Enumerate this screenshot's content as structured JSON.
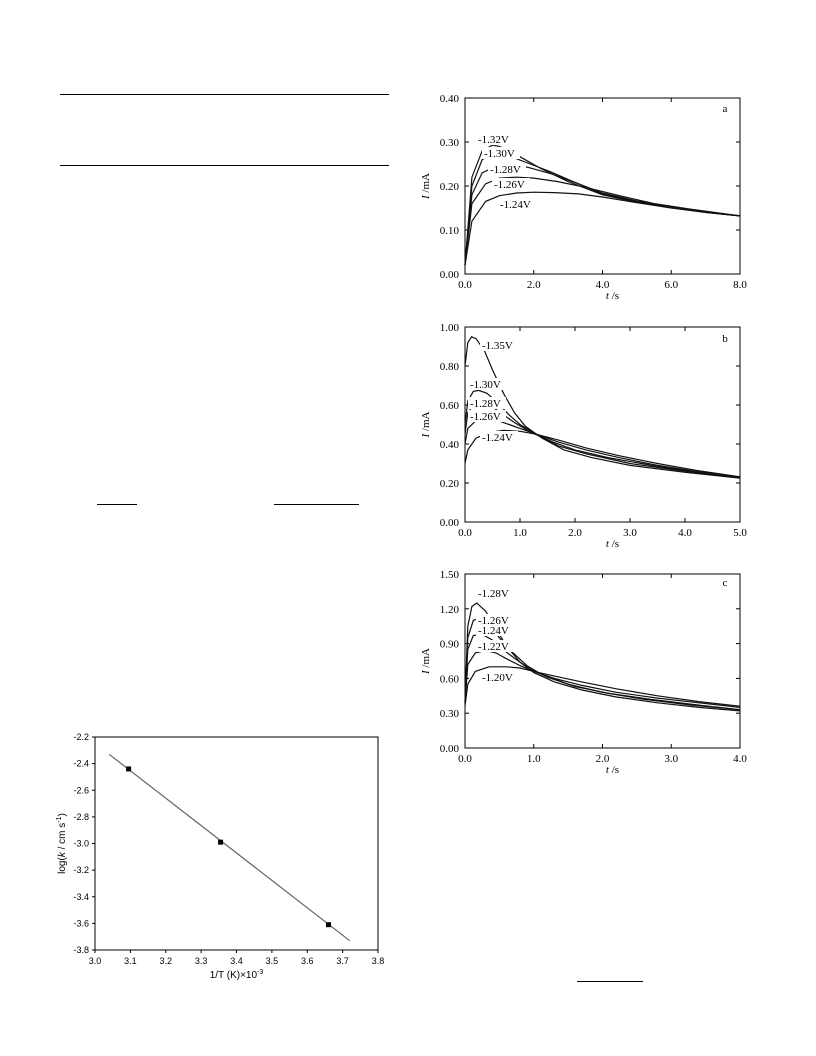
{
  "chart_data": [
    {
      "type": "line",
      "panel_letter": "a",
      "xlabel_var": "t",
      "xlabel_unit": " /s",
      "ylabel_var": "I",
      "ylabel_unit": " /mA",
      "xlim": [
        0,
        8
      ],
      "ylim": [
        0,
        0.4
      ],
      "x_ticks": [
        0,
        2,
        4,
        6,
        8
      ],
      "x_tick_labels": [
        "0.0",
        "2.0",
        "4.0",
        "6.0",
        "8.0"
      ],
      "y_ticks": [
        0,
        0.1,
        0.2,
        0.3,
        0.4
      ],
      "y_tick_labels": [
        "0.00",
        "0.10",
        "0.20",
        "0.30",
        "0.40"
      ],
      "series": [
        {
          "name": "-1.32V",
          "x": [
            0,
            0.2,
            0.5,
            0.8,
            1.0,
            1.3,
            1.7,
            2.2,
            3,
            4,
            5,
            6,
            7,
            8
          ],
          "y": [
            0.02,
            0.22,
            0.28,
            0.293,
            0.29,
            0.28,
            0.262,
            0.24,
            0.21,
            0.18,
            0.163,
            0.151,
            0.14,
            0.132
          ]
        },
        {
          "name": "-1.30V",
          "x": [
            0,
            0.2,
            0.5,
            0.8,
            1.1,
            1.4,
            1.9,
            2.5,
            3,
            4,
            5,
            6,
            7,
            8
          ],
          "y": [
            0.02,
            0.2,
            0.26,
            0.273,
            0.272,
            0.265,
            0.25,
            0.232,
            0.215,
            0.182,
            0.165,
            0.152,
            0.14,
            0.132
          ]
        },
        {
          "name": "-1.28V",
          "x": [
            0,
            0.2,
            0.5,
            0.9,
            1.3,
            1.8,
            2.5,
            3.2,
            4,
            5,
            6,
            7,
            8
          ],
          "y": [
            0.02,
            0.18,
            0.23,
            0.245,
            0.248,
            0.243,
            0.228,
            0.208,
            0.184,
            0.166,
            0.152,
            0.141,
            0.132
          ]
        },
        {
          "name": "-1.26V",
          "x": [
            0,
            0.2,
            0.6,
            1.0,
            1.5,
            2.0,
            2.7,
            3.5,
            4.5,
            5.5,
            6.5,
            8
          ],
          "y": [
            0.02,
            0.16,
            0.205,
            0.218,
            0.22,
            0.218,
            0.21,
            0.197,
            0.178,
            0.16,
            0.148,
            0.132
          ]
        },
        {
          "name": "-1.24V",
          "x": [
            0,
            0.2,
            0.6,
            1.0,
            1.5,
            2.0,
            2.6,
            3.3,
            4,
            5,
            6,
            7,
            8
          ],
          "y": [
            0.02,
            0.12,
            0.165,
            0.178,
            0.184,
            0.186,
            0.185,
            0.182,
            0.175,
            0.162,
            0.15,
            0.14,
            0.132
          ]
        }
      ],
      "label_positions_note": ""
    },
    {
      "type": "line",
      "panel_letter": "b",
      "xlabel_var": "t",
      "xlabel_unit": " /s",
      "ylabel_var": "I",
      "ylabel_unit": " /mA",
      "xlim": [
        0,
        5
      ],
      "ylim": [
        0,
        1.0
      ],
      "x_ticks": [
        0,
        1,
        2,
        3,
        4,
        5
      ],
      "x_tick_labels": [
        "0.0",
        "1.0",
        "2.0",
        "3.0",
        "4.0",
        "5.0"
      ],
      "y_ticks": [
        0,
        0.2,
        0.4,
        0.6,
        0.8,
        1.0
      ],
      "y_tick_labels": [
        "0.00",
        "0.20",
        "0.40",
        "0.60",
        "0.80",
        "1.00"
      ],
      "series": [
        {
          "name": "-1.35V",
          "x": [
            0,
            0.05,
            0.12,
            0.2,
            0.35,
            0.5,
            0.7,
            0.9,
            1.1,
            1.4,
            1.8,
            2.3,
            3,
            4,
            5
          ],
          "y": [
            0.8,
            0.92,
            0.95,
            0.94,
            0.88,
            0.78,
            0.66,
            0.56,
            0.49,
            0.43,
            0.37,
            0.33,
            0.29,
            0.255,
            0.225
          ]
        },
        {
          "name": "-1.30V",
          "x": [
            0,
            0.05,
            0.15,
            0.25,
            0.4,
            0.6,
            0.8,
            1.0,
            1.3,
            1.7,
            2.2,
            3,
            4,
            5
          ],
          "y": [
            0.5,
            0.62,
            0.67,
            0.675,
            0.66,
            0.61,
            0.55,
            0.5,
            0.45,
            0.39,
            0.35,
            0.3,
            0.26,
            0.228
          ]
        },
        {
          "name": "-1.28V",
          "x": [
            0,
            0.05,
            0.15,
            0.3,
            0.5,
            0.7,
            0.9,
            1.2,
            1.6,
            2.0,
            2.6,
            3.4,
            4.2,
            5
          ],
          "y": [
            0.45,
            0.56,
            0.6,
            0.61,
            0.59,
            0.55,
            0.51,
            0.46,
            0.41,
            0.37,
            0.33,
            0.29,
            0.255,
            0.228
          ]
        },
        {
          "name": "-1.26V",
          "x": [
            0,
            0.05,
            0.2,
            0.4,
            0.6,
            0.8,
            1.0,
            1.3,
            1.7,
            2.2,
            2.8,
            3.5,
            4.2,
            5
          ],
          "y": [
            0.4,
            0.48,
            0.52,
            0.525,
            0.52,
            0.5,
            0.48,
            0.45,
            0.41,
            0.37,
            0.33,
            0.29,
            0.26,
            0.23
          ]
        },
        {
          "name": "-1.24V",
          "x": [
            0,
            0.05,
            0.2,
            0.45,
            0.7,
            1.0,
            1.3,
            1.7,
            2.2,
            2.8,
            3.5,
            4.2,
            5
          ],
          "y": [
            0.3,
            0.37,
            0.43,
            0.46,
            0.47,
            0.465,
            0.45,
            0.42,
            0.38,
            0.34,
            0.3,
            0.265,
            0.232
          ]
        }
      ]
    },
    {
      "type": "line",
      "panel_letter": "c",
      "xlabel_var": "t",
      "xlabel_unit": " /s",
      "ylabel_var": "I",
      "ylabel_unit": " /mA",
      "xlim": [
        0,
        4
      ],
      "ylim": [
        0,
        1.5
      ],
      "x_ticks": [
        0,
        1,
        2,
        3,
        4
      ],
      "x_tick_labels": [
        "0.0",
        "1.0",
        "2.0",
        "3.0",
        "4.0"
      ],
      "y_ticks": [
        0,
        0.3,
        0.6,
        0.9,
        1.2,
        1.5
      ],
      "y_tick_labels": [
        "0.00",
        "0.30",
        "0.60",
        "0.90",
        "1.20",
        "1.50"
      ],
      "series": [
        {
          "name": "-1.28V",
          "x": [
            0,
            0.04,
            0.1,
            0.17,
            0.3,
            0.45,
            0.6,
            0.8,
            1.0,
            1.3,
            1.7,
            2.2,
            2.8,
            3.4,
            4
          ],
          "y": [
            0.4,
            1.05,
            1.22,
            1.25,
            1.18,
            1.03,
            0.88,
            0.74,
            0.65,
            0.57,
            0.5,
            0.44,
            0.39,
            0.35,
            0.32
          ]
        },
        {
          "name": "-1.26V",
          "x": [
            0,
            0.04,
            0.12,
            0.22,
            0.35,
            0.5,
            0.7,
            0.9,
            1.1,
            1.5,
            2.0,
            2.6,
            3.3,
            4
          ],
          "y": [
            0.4,
            0.95,
            1.1,
            1.12,
            1.06,
            0.95,
            0.82,
            0.71,
            0.64,
            0.55,
            0.48,
            0.42,
            0.37,
            0.33
          ]
        },
        {
          "name": "-1.24V",
          "x": [
            0,
            0.04,
            0.12,
            0.25,
            0.4,
            0.55,
            0.75,
            0.95,
            1.2,
            1.6,
            2.1,
            2.7,
            3.4,
            4
          ],
          "y": [
            0.4,
            0.85,
            0.97,
            0.98,
            0.93,
            0.85,
            0.76,
            0.68,
            0.61,
            0.53,
            0.47,
            0.42,
            0.37,
            0.33
          ]
        },
        {
          "name": "-1.22V",
          "x": [
            0,
            0.04,
            0.15,
            0.3,
            0.45,
            0.6,
            0.8,
            1.0,
            1.3,
            1.7,
            2.2,
            2.8,
            3.4,
            4
          ],
          "y": [
            0.38,
            0.72,
            0.82,
            0.84,
            0.82,
            0.77,
            0.71,
            0.66,
            0.6,
            0.54,
            0.48,
            0.43,
            0.39,
            0.35
          ]
        },
        {
          "name": "-1.20V",
          "x": [
            0,
            0.04,
            0.15,
            0.35,
            0.6,
            0.8,
            1.0,
            1.3,
            1.7,
            2.2,
            2.8,
            3.4,
            4
          ],
          "y": [
            0.36,
            0.55,
            0.66,
            0.7,
            0.7,
            0.69,
            0.66,
            0.62,
            0.57,
            0.51,
            0.45,
            0.4,
            0.36
          ]
        }
      ]
    },
    {
      "type": "scatter",
      "xlabel": "1/T (K)×10",
      "xlabel_sup": "-3",
      "ylabel_prefix": "log(",
      "ylabel_var": "k",
      "ylabel_mid": " / cm s",
      "ylabel_sup": "-1",
      "ylabel_suffix": ")",
      "xlim": [
        3.0,
        3.8
      ],
      "ylim": [
        -3.8,
        -2.2
      ],
      "x_ticks": [
        3.0,
        3.1,
        3.2,
        3.3,
        3.4,
        3.5,
        3.6,
        3.7,
        3.8
      ],
      "x_tick_labels": [
        "3.0",
        "3.1",
        "3.2",
        "3.3",
        "3.4",
        "3.5",
        "3.6",
        "3.7",
        "3.8"
      ],
      "y_ticks": [
        -2.2,
        -2.4,
        -2.6,
        -2.8,
        -3.0,
        -3.2,
        -3.4,
        -3.6,
        -3.8
      ],
      "y_tick_labels": [
        "-2.2",
        "-2.4",
        "-2.6",
        "-2.8",
        "-3.0",
        "-3.2",
        "-3.4",
        "-3.6",
        "-3.8"
      ],
      "points": {
        "x": [
          3.095,
          3.355,
          3.66
        ],
        "y": [
          -2.44,
          -2.99,
          -3.61
        ]
      },
      "fit_line": {
        "x": [
          3.04,
          3.72
        ],
        "y": [
          -2.33,
          -3.73
        ]
      }
    }
  ]
}
